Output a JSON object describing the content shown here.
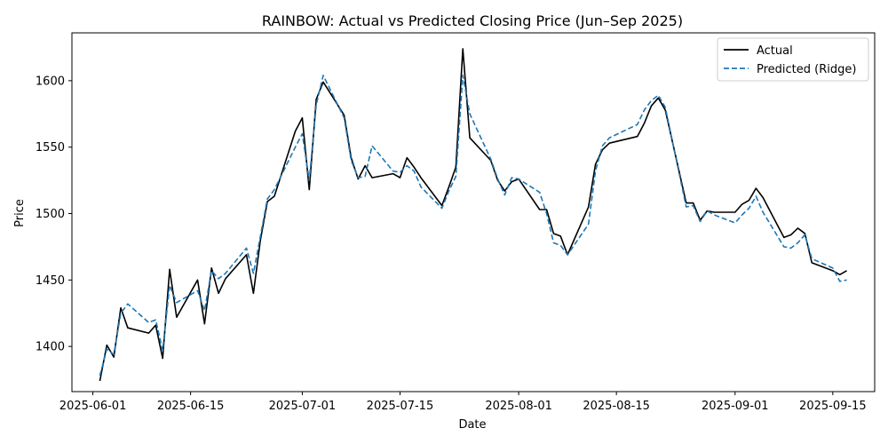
{
  "chart_data": {
    "type": "line",
    "title": "RAINBOW: Actual vs Predicted Closing Price (Jun–Sep 2025)",
    "xlabel": "Date",
    "ylabel": "Price",
    "xlim": [
      "2025-05-29",
      "2025-09-21"
    ],
    "ylim": [
      1366,
      1636
    ],
    "x_ticks": [
      "2025-06-01",
      "2025-06-15",
      "2025-07-01",
      "2025-07-15",
      "2025-08-01",
      "2025-08-15",
      "2025-09-01",
      "2025-09-15"
    ],
    "y_ticks": [
      1400,
      1450,
      1500,
      1550,
      1600
    ],
    "grid": false,
    "legend": "top-right",
    "x": [
      "2025-06-02",
      "2025-06-03",
      "2025-06-04",
      "2025-06-05",
      "2025-06-06",
      "2025-06-09",
      "2025-06-10",
      "2025-06-11",
      "2025-06-12",
      "2025-06-13",
      "2025-06-16",
      "2025-06-17",
      "2025-06-18",
      "2025-06-19",
      "2025-06-20",
      "2025-06-23",
      "2025-06-24",
      "2025-06-25",
      "2025-06-26",
      "2025-06-27",
      "2025-06-30",
      "2025-07-01",
      "2025-07-02",
      "2025-07-03",
      "2025-07-04",
      "2025-07-07",
      "2025-07-08",
      "2025-07-09",
      "2025-07-10",
      "2025-07-11",
      "2025-07-14",
      "2025-07-15",
      "2025-07-16",
      "2025-07-17",
      "2025-07-18",
      "2025-07-21",
      "2025-07-22",
      "2025-07-23",
      "2025-07-24",
      "2025-07-25",
      "2025-07-28",
      "2025-07-29",
      "2025-07-30",
      "2025-07-31",
      "2025-08-01",
      "2025-08-04",
      "2025-08-05",
      "2025-08-06",
      "2025-08-07",
      "2025-08-08",
      "2025-08-11",
      "2025-08-12",
      "2025-08-13",
      "2025-08-14",
      "2025-08-18",
      "2025-08-19",
      "2025-08-20",
      "2025-08-21",
      "2025-08-22",
      "2025-08-25",
      "2025-08-26",
      "2025-08-27",
      "2025-08-28",
      "2025-08-29",
      "2025-09-01",
      "2025-09-02",
      "2025-09-03",
      "2025-09-04",
      "2025-09-05",
      "2025-09-08",
      "2025-09-09",
      "2025-09-10",
      "2025-09-11",
      "2025-09-12",
      "2025-09-15",
      "2025-09-16",
      "2025-09-17"
    ],
    "series": [
      {
        "name": "Actual",
        "color": "#000000",
        "style": "solid",
        "values": [
          1374,
          1401,
          1392,
          1429,
          1414,
          1410,
          1416,
          1391,
          1458,
          1422,
          1450,
          1417,
          1459,
          1440,
          1451,
          1469,
          1440,
          1480,
          1509,
          1513,
          1562,
          1572,
          1518,
          1586,
          1599,
          1574,
          1542,
          1526,
          1536,
          1527,
          1530,
          1527,
          1542,
          1535,
          1527,
          1506,
          1520,
          1535,
          1624,
          1557,
          1540,
          1525,
          1517,
          1524,
          1526,
          1503,
          1503,
          1485,
          1483,
          1469,
          1505,
          1537,
          1548,
          1553,
          1558,
          1568,
          1581,
          1587,
          1578,
          1508,
          1508,
          1495,
          1502,
          1501,
          1501,
          1507,
          1510,
          1519,
          1512,
          1482,
          1484,
          1489,
          1485,
          1463,
          1457,
          1454,
          1457
        ]
      },
      {
        "name": "Predicted (Ridge)",
        "color": "#1f77b4",
        "style": "dashed",
        "values": [
          1378,
          1398,
          1394,
          1425,
          1432,
          1418,
          1420,
          1397,
          1446,
          1433,
          1442,
          1427,
          1457,
          1451,
          1455,
          1474,
          1455,
          1483,
          1511,
          1518,
          1550,
          1560,
          1525,
          1582,
          1604,
          1572,
          1540,
          1527,
          1528,
          1551,
          1532,
          1531,
          1536,
          1532,
          1520,
          1504,
          1517,
          1528,
          1604,
          1575,
          1541,
          1526,
          1514,
          1527,
          1526,
          1516,
          1500,
          1478,
          1476,
          1469,
          1492,
          1532,
          1551,
          1557,
          1567,
          1578,
          1585,
          1589,
          1580,
          1505,
          1506,
          1494,
          1502,
          1499,
          1493,
          1499,
          1504,
          1513,
          1501,
          1475,
          1474,
          1478,
          1484,
          1466,
          1459,
          1449,
          1450
        ]
      }
    ]
  }
}
